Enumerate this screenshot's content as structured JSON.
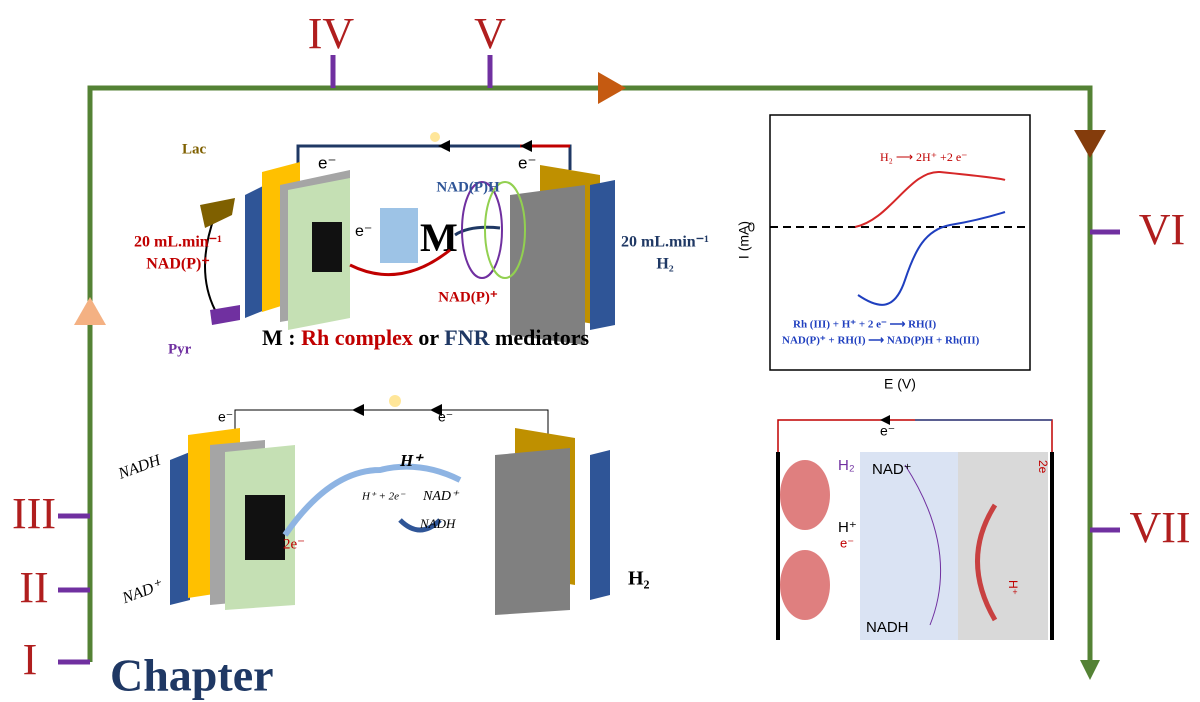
{
  "timeline": {
    "labels": [
      "I",
      "II",
      "III",
      "IV",
      "V",
      "VI",
      "VII"
    ],
    "chapter": "Chapter"
  },
  "panel_top": {
    "lac": "Lac",
    "flow_left": "20 mL.min⁻¹",
    "nadp_left": "NAD(P)⁺",
    "pyr": "Pyr",
    "e_left": "e⁻",
    "e_right": "e⁻",
    "e_center": "e⁻",
    "nadph": "NAD(P)H",
    "nadp_center": "NAD(P)⁺",
    "flow_right": "20 mL.min⁻¹",
    "h2": "H₂",
    "caption": {
      "m": "M : ",
      "rh": "Rh complex",
      "or": " or ",
      "fnr": "FNR",
      "mediators": " mediators"
    }
  },
  "graph": {
    "oxidation": "H₂ ⟶ 2H⁺ +2 e⁻",
    "y_label": "I (mA)",
    "zero": "0",
    "x_label": "E (V)",
    "reaction_1": "Rh (III) + H⁺ + 2 e⁻ ⟶ RH(I)",
    "reaction_2": "NAD(P)⁺ + RH(I) ⟶ NAD(P)H + Rh(III)"
  },
  "panel_bottom": {
    "e_left": "e⁻",
    "e_right": "e⁻",
    "nadh_top": "NADH",
    "nad_bottom": "NAD⁺",
    "h_plus": "H⁺",
    "h_reaction": "H⁺ + 2e⁻",
    "nad_mid": "NAD⁺",
    "nadh_mid": "NADH",
    "two_e": "2e⁻",
    "h2": "H₂"
  },
  "panel_cell": {
    "e": "e⁻",
    "h2": "H₂",
    "h_plus": "H⁺",
    "e_minus": "e⁻",
    "nad": "NAD⁺",
    "nadh": "NADH",
    "h_plus_right": "H⁺",
    "two_e": "2e"
  }
}
